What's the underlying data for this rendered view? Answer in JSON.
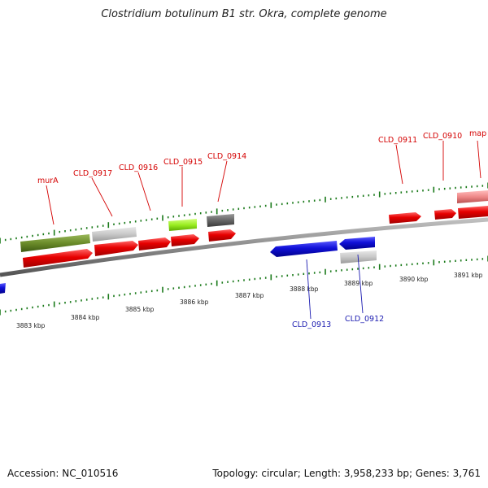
{
  "title": "Clostridium botulinum B1 str. Okra, complete genome",
  "footer": {
    "accession": "Accession: NC_010516",
    "summary": "Topology: circular; Length: 3,958,233 bp; Genes: 3,761"
  },
  "colors": {
    "red": "#e60000",
    "blue": "#1010d8",
    "olive": "#6b8c2a",
    "light_grey": "#c8c8c8",
    "dark_grey": "#666666",
    "lime": "#9aee22",
    "pink": "#ee8888",
    "tick": "#1a7a1a",
    "backbone": "#8a8a8a"
  },
  "genes": [
    {
      "name": "murA",
      "strand": "+"
    },
    {
      "name": "CLD_0917",
      "strand": "+"
    },
    {
      "name": "CLD_0916",
      "strand": "+"
    },
    {
      "name": "CLD_0915",
      "strand": "+"
    },
    {
      "name": "CLD_0914",
      "strand": "+"
    },
    {
      "name": "CLD_0913",
      "strand": "-"
    },
    {
      "name": "CLD_0912",
      "strand": "-"
    },
    {
      "name": "CLD_0911",
      "strand": "+"
    },
    {
      "name": "CLD_0910",
      "strand": "+"
    },
    {
      "name": "map",
      "strand": "+"
    }
  ],
  "scale_labels": [
    "3883 kbp",
    "3884 kbp",
    "3885 kbp",
    "3886 kbp",
    "3887 kbp",
    "3888 kbp",
    "3889 kbp",
    "3890 kbp",
    "3891 kbp"
  ]
}
